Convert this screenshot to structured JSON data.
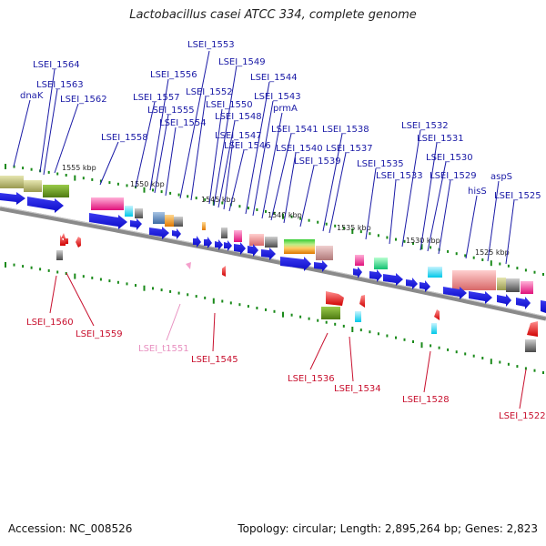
{
  "title": "Lactobacillus casei ATCC 334, complete genome",
  "footer": {
    "accession": "Accession: NC_008526",
    "summary": "Topology: circular; Length: 2,895,264 bp; Genes: 2,823"
  },
  "scale_labels": [
    "1555 kbp",
    "1550 kbp",
    "1545 kbp",
    "1540 kbp",
    "1535 kbp",
    "1530 kbp",
    "1525 kbp"
  ],
  "forward_genes": [
    "LSEI_1564",
    "LSEI_1563",
    "dnaK",
    "LSEI_1562",
    "LSEI_1558",
    "LSEI_1557",
    "LSEI_1556",
    "LSEI_1555",
    "LSEI_1554",
    "LSEI_1553",
    "LSEI_1552",
    "LSEI_1550",
    "LSEI_1549",
    "LSEI_1548",
    "LSEI_1547",
    "LSEI_1546",
    "LSEI_1544",
    "LSEI_1543",
    "prmA",
    "LSEI_1541",
    "LSEI_1540",
    "LSEI_1539",
    "LSEI_1538",
    "LSEI_1537",
    "LSEI_1535",
    "LSEI_1533",
    "LSEI_1532",
    "LSEI_1531",
    "LSEI_1530",
    "LSEI_1529",
    "hisS",
    "aspS",
    "LSEI_1525"
  ],
  "reverse_genes": [
    "LSEI_1560",
    "LSEI_1559",
    "LSEI_t1551",
    "LSEI_1545",
    "LSEI_1536",
    "LSEI_1534",
    "LSEI_1528",
    "LSEI_1522"
  ],
  "colors": {
    "forward_label": "#1a1aa6",
    "reverse_label": "#c8102e",
    "trna_label": "#e890c0",
    "cds_blue": "#1010dd",
    "backbone": "#8a8a8a",
    "tick": "#1a8a1a"
  }
}
